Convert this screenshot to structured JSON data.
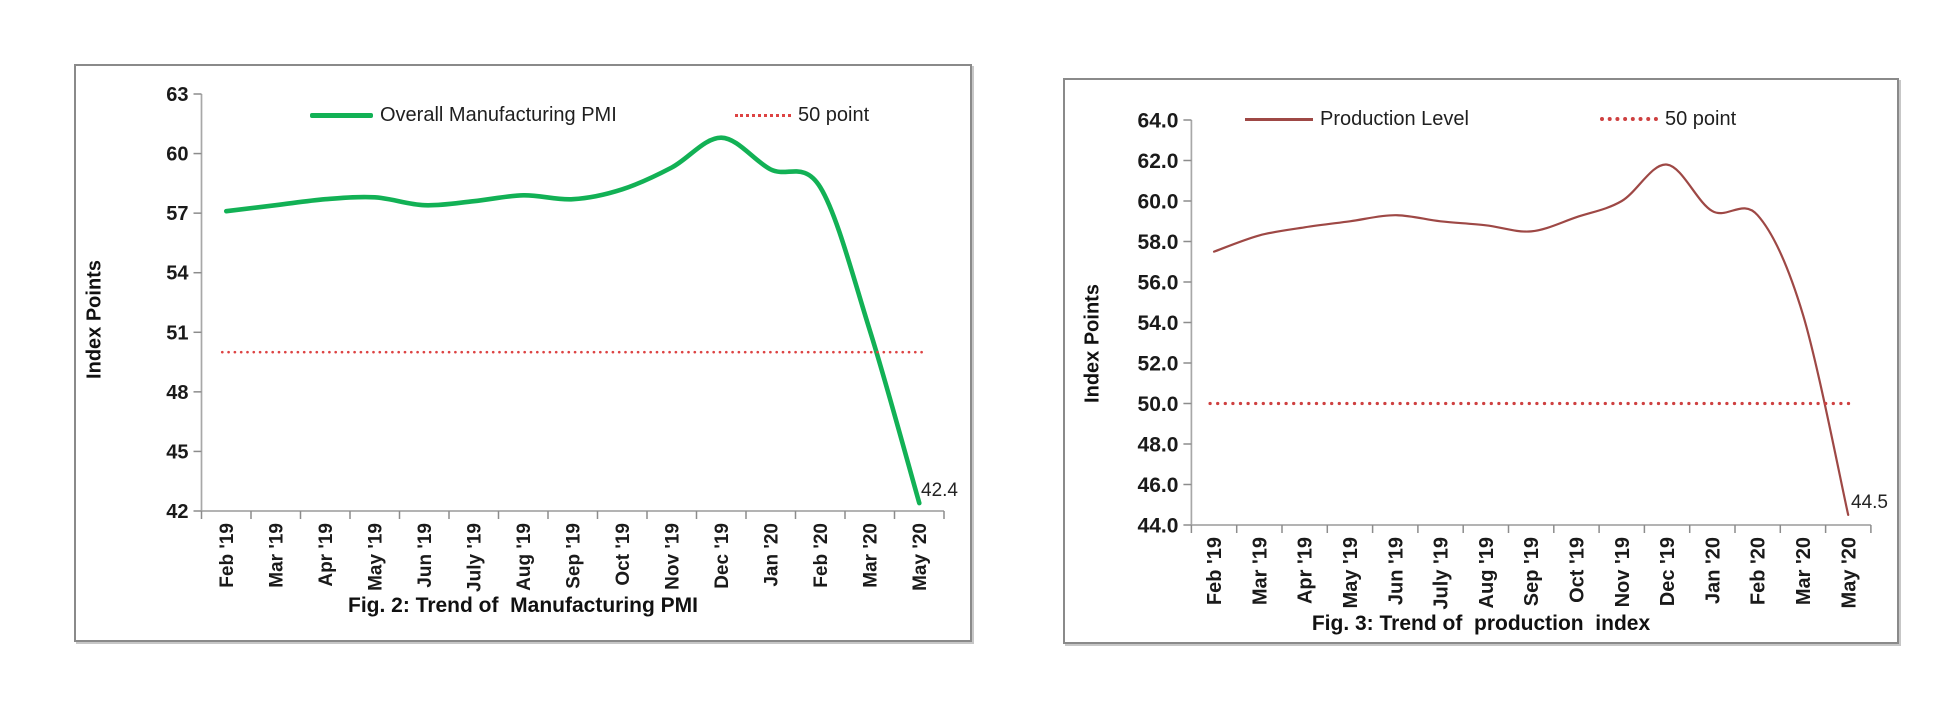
{
  "page": {
    "background": "#ffffff"
  },
  "chart_data": [
    {
      "type": "line",
      "fig_title": "Fig. 2: Trend of  Manufacturing PMI",
      "ylabel": "Index Points",
      "categories": [
        "Feb '19",
        "Mar '19",
        "Apr '19",
        "May '19",
        "Jun '19",
        "July '19",
        "Aug '19",
        "Sep '19",
        "Oct '19",
        "Nov '19",
        "Dec '19",
        "Jan '20",
        "Feb '20",
        "Mar '20",
        "May '20"
      ],
      "series": [
        {
          "name": "Overall Manufacturing PMI",
          "type": "smooth-line",
          "color": "#12B155",
          "stroke_width": 4.6,
          "values": [
            57.1,
            57.4,
            57.7,
            57.8,
            57.4,
            57.6,
            57.9,
            57.7,
            58.2,
            59.3,
            60.8,
            59.2,
            58.3,
            51.1,
            42.4
          ]
        },
        {
          "name": "50 point",
          "type": "dotted-hline",
          "color": "#DD4343",
          "stroke_width": 2.6,
          "value": 50
        }
      ],
      "ylim": [
        42,
        63
      ],
      "ytick_values": [
        63,
        60,
        57,
        54,
        51,
        48,
        45,
        42
      ],
      "ytick_labels": [
        "63",
        "60",
        "57",
        "54",
        "51",
        "48",
        "45",
        "42"
      ],
      "end_label": "42.4",
      "legend_position": "top",
      "grid": false
    },
    {
      "type": "line",
      "fig_title": "Fig. 3: Trend of  production  index",
      "ylabel": "Index Points",
      "categories": [
        "Feb '19",
        "Mar '19",
        "Apr '19",
        "May '19",
        "Jun '19",
        "July '19",
        "Aug '19",
        "Sep '19",
        "Oct '19",
        "Nov '19",
        "Dec '19",
        "Jan '20",
        "Feb '20",
        "Mar '20",
        "May '20"
      ],
      "series": [
        {
          "name": "Production Level",
          "type": "smooth-line",
          "color": "#9E4845",
          "stroke_width": 2.2,
          "values": [
            57.5,
            58.3,
            58.7,
            59.0,
            59.3,
            59.0,
            58.8,
            58.5,
            59.2,
            60.0,
            61.8,
            59.5,
            59.3,
            54.4,
            44.5
          ]
        },
        {
          "name": "50 point",
          "type": "dotted-hline",
          "color": "#CE4040",
          "stroke_width": 3.2,
          "value": 50
        }
      ],
      "ylim": [
        44,
        64
      ],
      "ytick_values": [
        64,
        62,
        60,
        58,
        56,
        54,
        52,
        50,
        48,
        46,
        44
      ],
      "ytick_labels": [
        "64.0",
        "62.0",
        "60.0",
        "58.0",
        "56.0",
        "54.0",
        "52.0",
        "50.0",
        "48.0",
        "46.0",
        "44.0"
      ],
      "end_label": "44.5",
      "legend_position": "top",
      "grid": false
    }
  ]
}
